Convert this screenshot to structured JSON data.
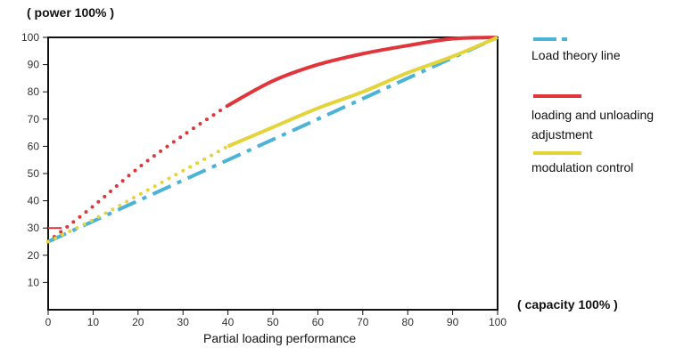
{
  "chart_data": {
    "type": "line",
    "title": "",
    "ylabel": "( power 100% )",
    "xlabel": "Partial loading performance",
    "xlabel_right": "( capacity 100% )",
    "xlim": [
      0,
      100
    ],
    "ylim": [
      0,
      100
    ],
    "x_ticks": [
      0,
      10,
      20,
      30,
      40,
      50,
      60,
      70,
      80,
      90,
      100
    ],
    "y_ticks": [
      10,
      20,
      30,
      40,
      50,
      60,
      70,
      80,
      90,
      100
    ],
    "grid": false,
    "legend_position": "right",
    "series": [
      {
        "name": "Load theory line",
        "color": "#4ab3d6",
        "style": "dash-dot",
        "x": [
          0,
          100
        ],
        "y": [
          25,
          100
        ]
      },
      {
        "name": "loading and unloading adjustment",
        "color": "#e0353a",
        "style": "dotted 0-40, solid 40-100",
        "x": [
          0,
          10,
          20,
          30,
          40,
          50,
          60,
          70,
          80,
          90,
          100
        ],
        "y": [
          25,
          38,
          52,
          64,
          75,
          84,
          90,
          94,
          97,
          99.5,
          100
        ]
      },
      {
        "name": "modulation control",
        "color": "#e3d43a",
        "style": "dotted 0-40, solid 40-100",
        "x": [
          0,
          10,
          20,
          30,
          40,
          50,
          60,
          70,
          80,
          90,
          100
        ],
        "y": [
          25,
          33,
          42,
          51,
          60,
          67,
          74,
          80,
          87,
          93,
          100
        ]
      }
    ],
    "annotations": [
      {
        "text": "30",
        "note": "short red segment at y=30 from x=0"
      }
    ]
  }
}
